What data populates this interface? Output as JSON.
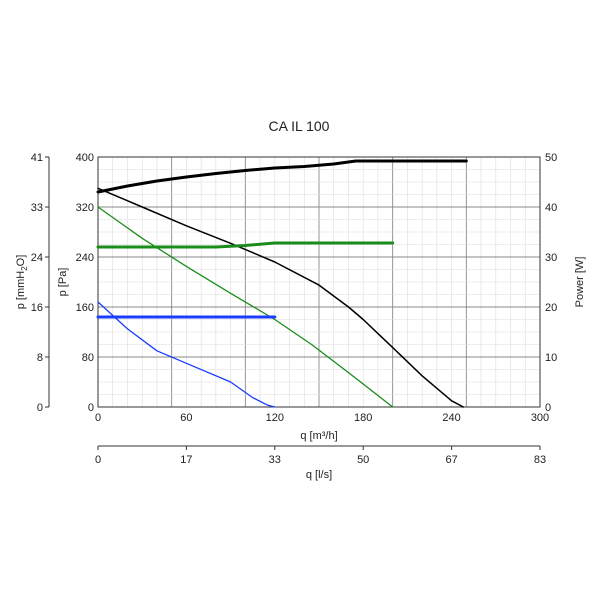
{
  "chart_data": {
    "type": "line",
    "title": "CA IL 100",
    "x_axis": {
      "label": "q [m³/h]",
      "range": [
        0,
        300
      ],
      "ticks": [
        "0",
        "60",
        "120",
        "180",
        "240",
        "300"
      ]
    },
    "x2_axis": {
      "label": "q [l/s]",
      "range": [
        0,
        83
      ],
      "ticks": [
        "0",
        "17",
        "33",
        "50",
        "67",
        "83"
      ]
    },
    "y_axis": {
      "label": "p [Pa]",
      "range": [
        0,
        400
      ],
      "ticks": [
        "0",
        "80",
        "160",
        "240",
        "320",
        "400"
      ]
    },
    "y_outer_axis": {
      "label_main": "p [mmH",
      "label_sub": "2",
      "label_end": "O]",
      "range": [
        0,
        41
      ],
      "ticks": [
        "0",
        "8",
        "16",
        "24",
        "33",
        "41"
      ]
    },
    "y2_axis": {
      "label": "Power [W]",
      "range": [
        0,
        50
      ],
      "ticks": [
        "0",
        "10",
        "20",
        "30",
        "40",
        "50"
      ]
    },
    "grid": true,
    "series": [
      {
        "color": "#000000",
        "axis": "pressure",
        "width": 1.5,
        "points": [
          [
            0,
            350
          ],
          [
            30,
            320
          ],
          [
            60,
            290
          ],
          [
            90,
            262
          ],
          [
            120,
            232
          ],
          [
            150,
            195
          ],
          [
            170,
            160
          ],
          [
            180,
            140
          ],
          [
            200,
            95
          ],
          [
            220,
            50
          ],
          [
            240,
            10
          ],
          [
            248,
            0
          ]
        ]
      },
      {
        "color": "#1a8c1a",
        "axis": "pressure",
        "width": 1.3,
        "points": [
          [
            0,
            320
          ],
          [
            30,
            270
          ],
          [
            60,
            225
          ],
          [
            90,
            182
          ],
          [
            120,
            140
          ],
          [
            145,
            100
          ],
          [
            170,
            55
          ],
          [
            200,
            0
          ]
        ]
      },
      {
        "color": "#1a3cff",
        "axis": "pressure",
        "width": 1.3,
        "points": [
          [
            0,
            168
          ],
          [
            20,
            125
          ],
          [
            40,
            90
          ],
          [
            60,
            70
          ],
          [
            90,
            40
          ],
          [
            105,
            15
          ],
          [
            115,
            3
          ],
          [
            120,
            0
          ]
        ]
      },
      {
        "color": "#000000",
        "axis": "power",
        "width": 3,
        "points": [
          [
            0,
            43
          ],
          [
            20,
            44.2
          ],
          [
            40,
            45.2
          ],
          [
            60,
            46
          ],
          [
            80,
            46.7
          ],
          [
            100,
            47.3
          ],
          [
            120,
            47.8
          ],
          [
            140,
            48.1
          ],
          [
            160,
            48.6
          ],
          [
            175,
            49.2
          ],
          [
            200,
            49.2
          ],
          [
            240,
            49.2
          ],
          [
            250,
            49.2
          ]
        ]
      },
      {
        "color": "#1a8c1a",
        "axis": "power",
        "width": 3,
        "points": [
          [
            0,
            32
          ],
          [
            80,
            32
          ],
          [
            100,
            32.3
          ],
          [
            120,
            32.8
          ],
          [
            150,
            32.8
          ],
          [
            180,
            32.8
          ],
          [
            200,
            32.8
          ]
        ]
      },
      {
        "color": "#1a3cff",
        "axis": "power",
        "width": 3,
        "points": [
          [
            0,
            18
          ],
          [
            60,
            18
          ],
          [
            120,
            18
          ]
        ]
      }
    ]
  }
}
